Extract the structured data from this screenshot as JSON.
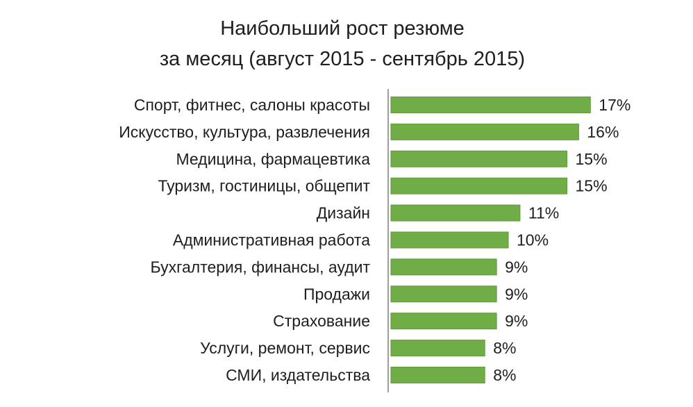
{
  "chart_data": {
    "type": "bar",
    "orientation": "horizontal",
    "title": [
      "Наибольший рост резюме",
      "за месяц (август 2015 - сентябрь 2015)"
    ],
    "categories": [
      "Спорт, фитнес, салоны красоты",
      "Искусство, культура, развлечения",
      "Медицина, фармацевтика",
      "Туризм, гостиницы, общепит",
      "Дизайн",
      "Административная работа",
      "Бухгалтерия, финансы, аудит",
      "Продажи",
      "Страхование",
      "Услуги, ремонт, сервис",
      "СМИ, издательства"
    ],
    "values": [
      17,
      16,
      15,
      15,
      11,
      10,
      9,
      9,
      9,
      8,
      8
    ],
    "value_labels": [
      "17%",
      "16%",
      "15%",
      "15%",
      "11%",
      "10%",
      "9%",
      "9%",
      "9%",
      "8%",
      "8%"
    ],
    "bar_color": "#70ad47",
    "bar_edge_color": "#5e9b3a",
    "axis_line_color": "#7f7f7f",
    "xlim": [
      0,
      17
    ],
    "grid": false,
    "legend": "none"
  }
}
